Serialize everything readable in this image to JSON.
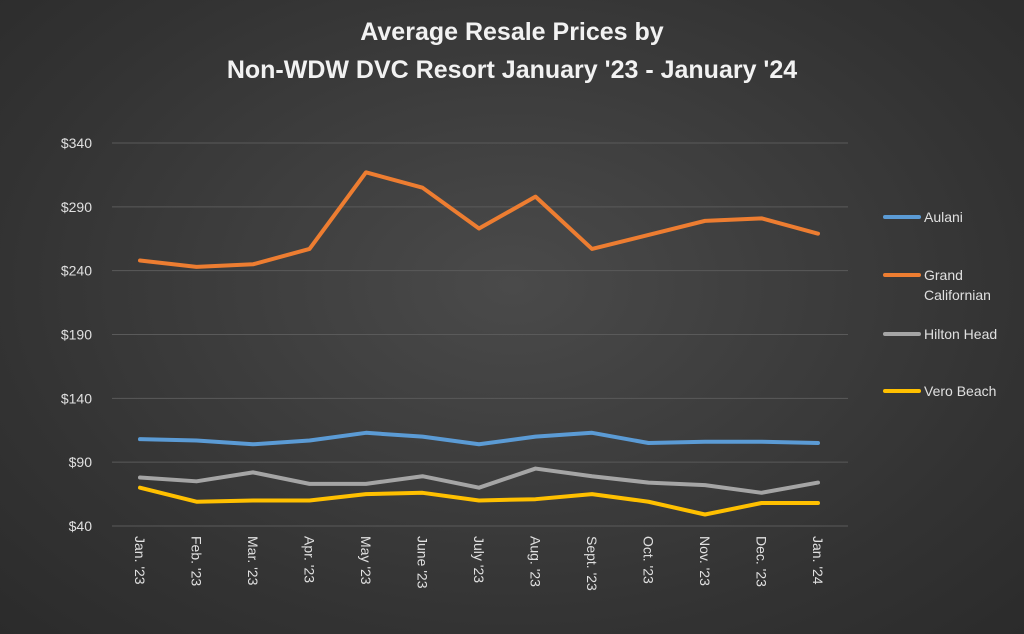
{
  "chart_data": {
    "type": "line",
    "title": [
      "Average Resale Prices by",
      "Non-WDW DVC Resort January '23 - January '24"
    ],
    "categories": [
      "Jan. '23",
      "Feb. '23",
      "Mar. '23",
      "Apr. '23",
      "May '23",
      "June '23",
      "July '23",
      "Aug. '23",
      "Sept. '23",
      "Oct. '23",
      "Nov. '23",
      "Dec. '23",
      "Jan. '24"
    ],
    "series": [
      {
        "name": "Aulani",
        "color": "#5b9bd5",
        "values": [
          108,
          107,
          104,
          107,
          113,
          110,
          104,
          110,
          113,
          105,
          106,
          106,
          105
        ]
      },
      {
        "name": "Grand Californian",
        "color": "#ed7d31",
        "values": [
          248,
          243,
          245,
          257,
          317,
          305,
          273,
          298,
          257,
          268,
          279,
          281,
          269
        ]
      },
      {
        "name": "Hilton Head",
        "color": "#a5a5a5",
        "values": [
          78,
          75,
          82,
          73,
          73,
          79,
          70,
          85,
          79,
          74,
          72,
          66,
          74
        ]
      },
      {
        "name": "Vero Beach",
        "color": "#ffc000",
        "values": [
          70,
          59,
          60,
          60,
          65,
          66,
          60,
          61,
          65,
          59,
          49,
          58,
          58
        ]
      }
    ],
    "ylim": [
      40,
      340
    ],
    "yticks": [
      {
        "value": 40,
        "label": "$40"
      },
      {
        "value": 90,
        "label": "$90"
      },
      {
        "value": 140,
        "label": "$140"
      },
      {
        "value": 190,
        "label": "$190"
      },
      {
        "value": 240,
        "label": "$240"
      },
      {
        "value": 290,
        "label": "$290"
      },
      {
        "value": 340,
        "label": "$340"
      }
    ],
    "grid": true,
    "legend": "right"
  }
}
